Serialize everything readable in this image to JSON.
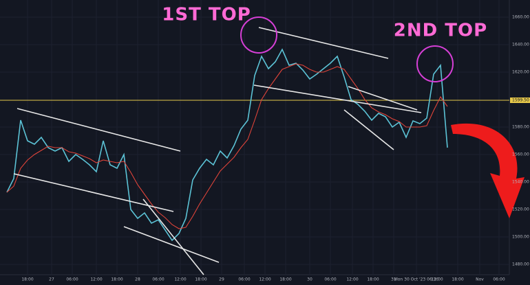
{
  "chart_data": {
    "type": "line",
    "annotations": [
      "1ST TOP",
      "2ND TOP"
    ],
    "x": [
      0,
      1,
      2,
      3,
      4,
      5,
      6,
      7,
      8,
      9,
      10,
      11,
      12,
      13,
      14,
      15,
      16,
      17,
      18,
      19,
      20,
      21,
      22,
      23,
      24,
      25,
      26,
      27,
      28,
      29,
      30,
      31,
      32,
      33,
      34,
      35,
      36,
      37,
      38,
      39,
      40,
      41,
      42,
      43,
      44,
      45,
      46,
      47,
      48,
      49,
      50,
      51,
      52,
      53,
      54,
      55,
      56,
      57,
      58,
      59,
      60,
      61,
      62,
      63,
      64
    ],
    "series": [
      {
        "color": "#5cc3d6",
        "values": [
          1532.5,
          1542.5,
          1585,
          1570,
          1567.5,
          1572.5,
          1565,
          1562.5,
          1565,
          1555,
          1560,
          1556.5,
          1552.5,
          1547.5,
          1570,
          1552.5,
          1550,
          1560,
          1520,
          1513.5,
          1517.5,
          1510,
          1512.5,
          1505,
          1497.5,
          1502.5,
          1513.5,
          1541.5,
          1550,
          1556.5,
          1552.5,
          1562.5,
          1557.5,
          1566.5,
          1578.5,
          1585,
          1617.5,
          1631.5,
          1622.5,
          1627.5,
          1636.5,
          1625,
          1626.5,
          1621.5,
          1615,
          1618.5,
          1622.5,
          1626.5,
          1631.5,
          1616.5,
          1600,
          1596.5,
          1591.5,
          1585,
          1590,
          1587.5,
          1580,
          1583.5,
          1572.5,
          1584.5,
          1582.5,
          1586.5,
          1618.5,
          1625,
          1565
        ]
      },
      {
        "color": "#e0443a",
        "values": [
          1532.5,
          1537,
          1550,
          1556,
          1560,
          1563,
          1566,
          1565,
          1565,
          1562,
          1561,
          1559,
          1557,
          1554,
          1556,
          1555,
          1554,
          1555,
          1547,
          1538,
          1531,
          1524,
          1518,
          1514,
          1509,
          1506,
          1507,
          1515,
          1524,
          1532,
          1540,
          1548,
          1553,
          1558,
          1565,
          1571,
          1585,
          1600,
          1608,
          1615,
          1622,
          1624,
          1626,
          1625,
          1622,
          1620,
          1620,
          1622,
          1624,
          1622,
          1615,
          1608,
          1600,
          1594,
          1591,
          1589,
          1586,
          1584,
          1580,
          1580,
          1580,
          1581,
          1592,
          1602,
          1595
        ]
      }
    ],
    "level": {
      "value": 1599.5,
      "label": "1599.50",
      "color": "#e6c84a"
    },
    "xlim": [
      -1,
      73
    ],
    "ylim": [
      1475,
      1670
    ],
    "yticks": [
      {
        "value": 1480,
        "label": "1480.00"
      },
      {
        "value": 1500,
        "label": "1500.00"
      },
      {
        "value": 1520,
        "label": "1520.00"
      },
      {
        "value": 1540,
        "label": "1540.00"
      },
      {
        "value": 1560,
        "label": "1560.00"
      },
      {
        "value": 1580,
        "label": "1580.00"
      },
      {
        "value": 1620,
        "label": "1620.00"
      },
      {
        "value": 1640,
        "label": "1640.00"
      },
      {
        "value": 1660,
        "label": "1660.00"
      }
    ],
    "xticks": [
      {
        "value": 3,
        "label": "18:00"
      },
      {
        "value": 6.5,
        "label": "27"
      },
      {
        "value": 9.5,
        "label": "06:00"
      },
      {
        "value": 13,
        "label": "12:00"
      },
      {
        "value": 16,
        "label": "18:00"
      },
      {
        "value": 19,
        "label": "28"
      },
      {
        "value": 22,
        "label": "06:00"
      },
      {
        "value": 25.2,
        "label": "12:00"
      },
      {
        "value": 28.2,
        "label": "18:00"
      },
      {
        "value": 31.2,
        "label": "29"
      },
      {
        "value": 34.5,
        "label": "06:00"
      },
      {
        "value": 37.5,
        "label": "12:00"
      },
      {
        "value": 40.5,
        "label": "18:00"
      },
      {
        "value": 44,
        "label": "30"
      },
      {
        "value": 47,
        "label": "06:00"
      },
      {
        "value": 50.2,
        "label": "12:00"
      },
      {
        "value": 53.2,
        "label": "18:00"
      },
      {
        "value": 56.2,
        "label": "31"
      },
      {
        "value": 59.5,
        "label": "Mon 30 Oct '23 06:30"
      },
      {
        "value": 62.5,
        "label": "12:00"
      },
      {
        "value": 65.5,
        "label": "18:00"
      },
      {
        "value": 68.7,
        "label": "Nov"
      },
      {
        "value": 71.5,
        "label": "06:00"
      }
    ]
  }
}
